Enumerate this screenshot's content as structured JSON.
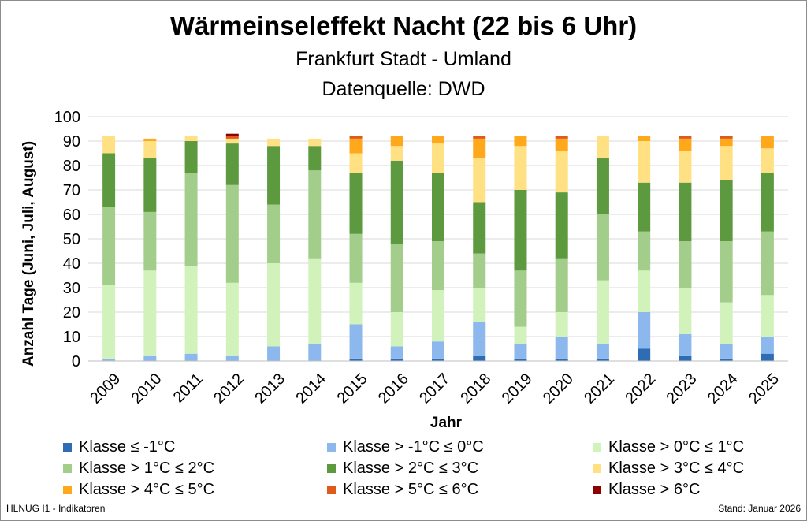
{
  "chart_data": {
    "type": "bar",
    "stacked": true,
    "title": "Wärmeinseleffekt Nacht (22 bis 6 Uhr)",
    "subtitle_lines": [
      "Frankfurt Stadt - Umland",
      "Datenquelle: DWD"
    ],
    "xlabel": "Jahr",
    "ylabel": "Anzahl Tage (Juni, Juli, August)",
    "ylim": [
      0,
      100
    ],
    "yticks": [
      0,
      10,
      20,
      30,
      40,
      50,
      60,
      70,
      80,
      90,
      100
    ],
    "grid": true,
    "legend_position": "bottom",
    "categories": [
      "2009",
      "2010",
      "2011",
      "2012",
      "2013",
      "2014",
      "2015",
      "2016",
      "2017",
      "2018",
      "2019",
      "2020",
      "2021",
      "2022",
      "2023",
      "2024",
      "2025"
    ],
    "series": [
      {
        "name": "Klasse ≤ -1°C",
        "color": "#2e6db4",
        "values": [
          0,
          0,
          0,
          0,
          0,
          0,
          1,
          1,
          1,
          2,
          1,
          1,
          1,
          5,
          2,
          1,
          3
        ]
      },
      {
        "name": "Klasse > -1°C ≤ 0°C",
        "color": "#8db8ee",
        "values": [
          1,
          2,
          3,
          2,
          6,
          7,
          14,
          5,
          7,
          14,
          6,
          9,
          6,
          15,
          9,
          6,
          7
        ]
      },
      {
        "name": "Klasse > 0°C ≤ 1°C",
        "color": "#d2f2bc",
        "values": [
          30,
          35,
          36,
          30,
          34,
          35,
          17,
          14,
          21,
          14,
          7,
          10,
          26,
          17,
          19,
          17,
          17
        ]
      },
      {
        "name": "Klasse > 1°C ≤ 2°C",
        "color": "#a2cd8a",
        "values": [
          32,
          24,
          38,
          40,
          24,
          36,
          20,
          28,
          20,
          14,
          23,
          22,
          27,
          16,
          19,
          25,
          26
        ]
      },
      {
        "name": "Klasse > 2°C ≤ 3°C",
        "color": "#5d9a3f",
        "values": [
          22,
          22,
          13,
          17,
          24,
          10,
          25,
          34,
          28,
          21,
          33,
          27,
          23,
          20,
          24,
          25,
          24
        ]
      },
      {
        "name": "Klasse > 3°C ≤ 4°C",
        "color": "#ffe083",
        "values": [
          7,
          7,
          2,
          2,
          3,
          3,
          8,
          6,
          12,
          18,
          18,
          17,
          9,
          17,
          13,
          14,
          10
        ]
      },
      {
        "name": "Klasse > 4°C ≤ 5°C",
        "color": "#ffa81c",
        "values": [
          0,
          1,
          0,
          0,
          0,
          0,
          6,
          4,
          3,
          8,
          4,
          5,
          0,
          2,
          5,
          3,
          5
        ]
      },
      {
        "name": "Klasse > 5°C ≤ 6°C",
        "color": "#e05a1c",
        "values": [
          0,
          0,
          0,
          1,
          0,
          0,
          1,
          0,
          0,
          1,
          0,
          1,
          0,
          0,
          1,
          1,
          0
        ]
      },
      {
        "name": "Klasse > 6°C",
        "color": "#8b0000",
        "values": [
          0,
          0,
          0,
          1,
          0,
          0,
          0,
          0,
          0,
          0,
          0,
          0,
          0,
          0,
          0,
          0,
          0
        ]
      }
    ]
  },
  "footer": {
    "left": "HLNUG I1 - Indikatoren",
    "right": "Stand: Januar  2026"
  }
}
